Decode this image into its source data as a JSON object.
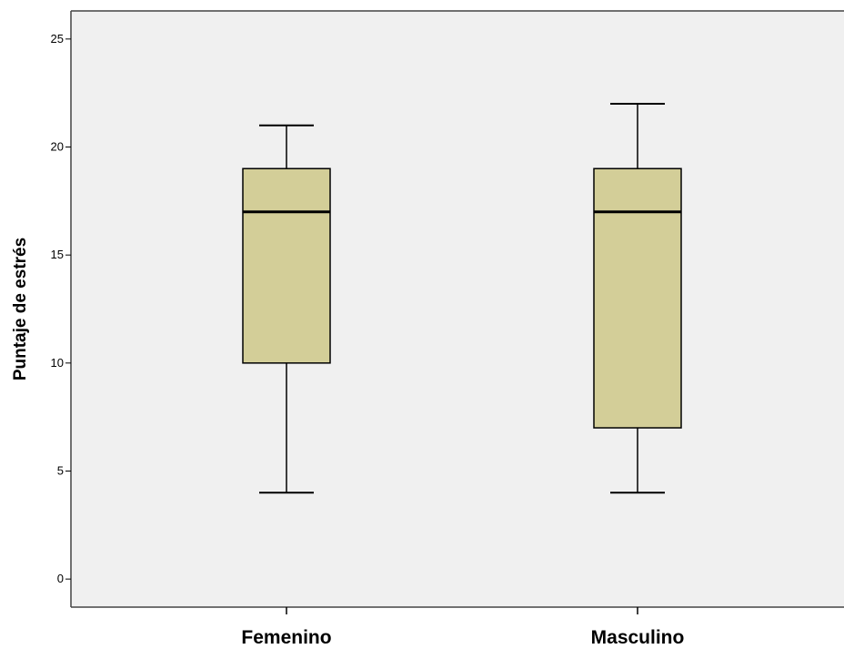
{
  "chart_data": {
    "type": "box",
    "title": "",
    "xlabel": "",
    "ylabel": "Puntaje de estrés",
    "ylim": [
      -1.3,
      26.3
    ],
    "yticks": [
      0,
      5,
      10,
      15,
      20,
      25
    ],
    "grid": false,
    "categories": [
      "Femenino",
      "Masculino"
    ],
    "series": [
      {
        "category": "Femenino",
        "min": 4,
        "q1": 10,
        "median": 17,
        "q3": 19,
        "max": 21
      },
      {
        "category": "Masculino",
        "min": 4,
        "q1": 7,
        "median": 17,
        "q3": 19,
        "max": 22
      }
    ],
    "colors": {
      "box_fill": "#d3ce98",
      "plot_background": "#f0f0f0",
      "stroke": "#000000",
      "frame": "#444444"
    }
  }
}
